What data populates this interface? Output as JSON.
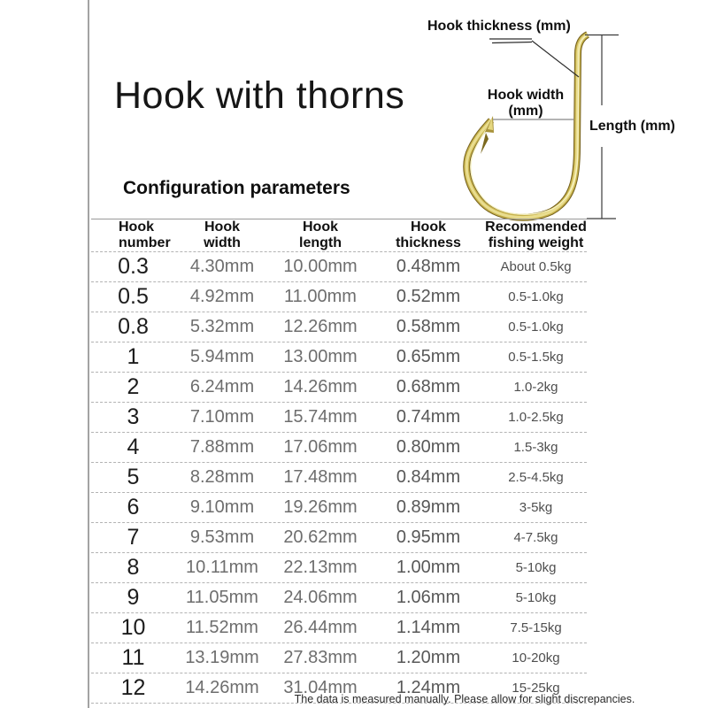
{
  "page": {
    "title": "Hook with thorns",
    "section_heading": "Configuration parameters",
    "footer_note": "The data is measured manually.  Please allow for slight discrepancies."
  },
  "diagram": {
    "subject": "gold fishing hook with barb",
    "labels": {
      "thickness": "Hook thickness (mm)",
      "width_line1": "Hook width",
      "width_line2": "(mm)",
      "length": "Length (mm)"
    },
    "colors": {
      "gold_dark": "#75611e",
      "gold_mid": "#c7b24c",
      "gold_light": "#e9dd8f",
      "gold_highlight": "#f8f3c4"
    }
  },
  "table": {
    "headers": [
      [
        "Hook",
        "number"
      ],
      [
        "Hook",
        "width"
      ],
      [
        "Hook",
        "length"
      ],
      [
        "Hook",
        "thickness"
      ],
      [
        "Recommended",
        "fishing weight"
      ]
    ],
    "rows": [
      [
        "0.3",
        "4.30mm",
        "10.00mm",
        "0.48mm",
        "About 0.5kg"
      ],
      [
        "0.5",
        "4.92mm",
        "11.00mm",
        "0.52mm",
        "0.5-1.0kg"
      ],
      [
        "0.8",
        "5.32mm",
        "12.26mm",
        "0.58mm",
        "0.5-1.0kg"
      ],
      [
        "1",
        "5.94mm",
        "13.00mm",
        "0.65mm",
        "0.5-1.5kg"
      ],
      [
        "2",
        "6.24mm",
        "14.26mm",
        "0.68mm",
        "1.0-2kg"
      ],
      [
        "3",
        "7.10mm",
        "15.74mm",
        "0.74mm",
        "1.0-2.5kg"
      ],
      [
        "4",
        "7.88mm",
        "17.06mm",
        "0.80mm",
        "1.5-3kg"
      ],
      [
        "5",
        "8.28mm",
        "17.48mm",
        "0.84mm",
        "2.5-4.5kg"
      ],
      [
        "6",
        "9.10mm",
        "19.26mm",
        "0.89mm",
        "3-5kg"
      ],
      [
        "7",
        "9.53mm",
        "20.62mm",
        "0.95mm",
        "4-7.5kg"
      ],
      [
        "8",
        "10.11mm",
        "22.13mm",
        "1.00mm",
        "5-10kg"
      ],
      [
        "9",
        "11.05mm",
        "24.06mm",
        "1.06mm",
        "5-10kg"
      ],
      [
        "10",
        "11.52mm",
        "26.44mm",
        "1.14mm",
        "7.5-15kg"
      ],
      [
        "11",
        "13.19mm",
        "27.83mm",
        "1.20mm",
        "10-20kg"
      ],
      [
        "12",
        "14.26mm",
        "31.04mm",
        "1.24mm",
        "15-25kg"
      ]
    ]
  },
  "ui_colors": {
    "divider_gray": "#a3a3a3",
    "table_solid_line": "#9a9a9a",
    "table_dashed_line": "#b3b3b3",
    "value_text": "#6e6e6e",
    "number_text": "#1d1d1d"
  }
}
